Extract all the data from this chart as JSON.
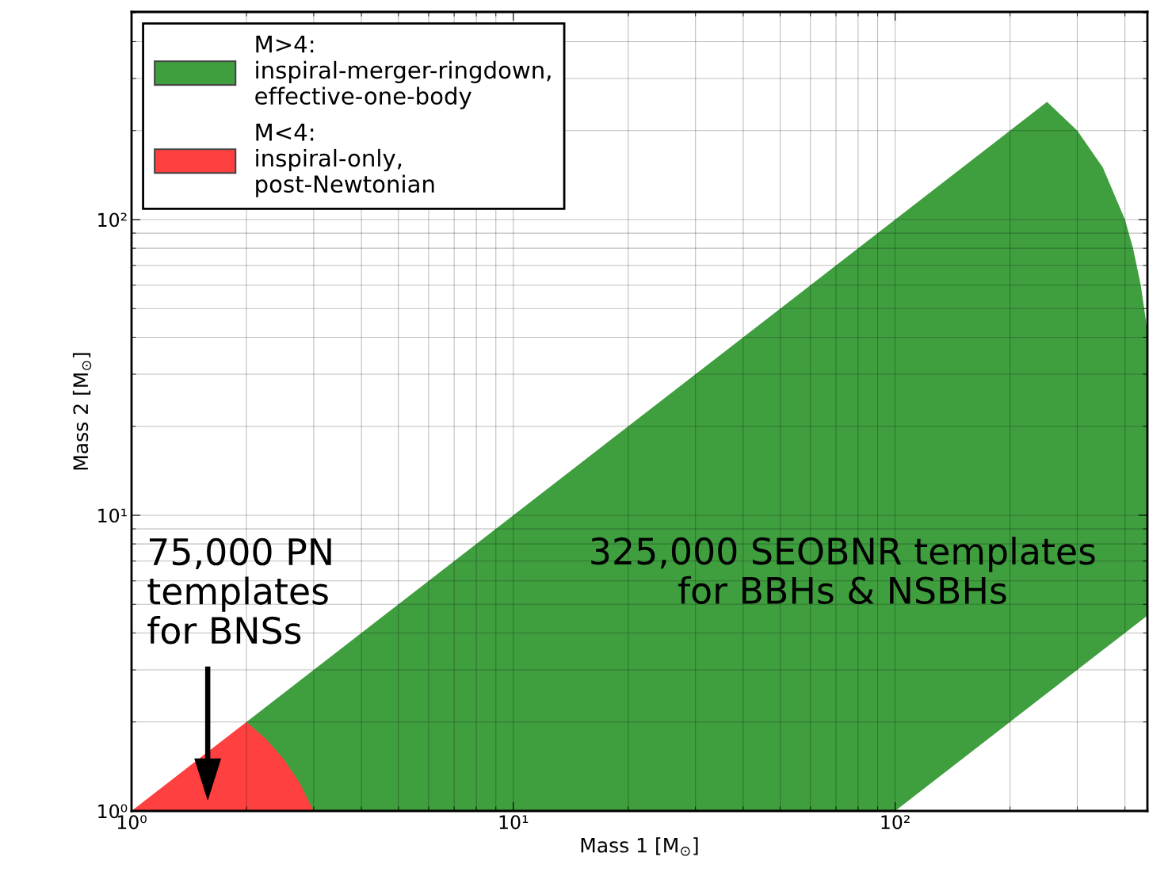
{
  "chart_data": {
    "type": "area",
    "xlabel": "Mass 1 [M$_{⊙}$]",
    "ylabel": "Mass 2 [M$_{⊙}$]",
    "log": "xy",
    "xlim": [
      1,
      458
    ],
    "ylim": [
      1,
      504
    ],
    "xticks": [
      {
        "value": 1,
        "label": "10⁰"
      },
      {
        "value": 10,
        "label": "10¹"
      },
      {
        "value": 100,
        "label": "10²"
      }
    ],
    "yticks": [
      {
        "value": 1,
        "label": "10⁰"
      },
      {
        "value": 10,
        "label": "10¹"
      },
      {
        "value": 100,
        "label": "10²"
      }
    ],
    "grid": true,
    "legend": "top left",
    "series": [
      {
        "name": "M>4:\ninspiral-merger-ringdown,\neffective-one-body",
        "color": "#3f9f3f",
        "x": [
          2,
          10,
          100,
          250,
          300,
          350,
          400,
          420,
          440,
          458
        ],
        "values": [
          2,
          10,
          100,
          250,
          200,
          150,
          100,
          80,
          60,
          42
        ]
      },
      {
        "color": "#ffffff",
        "x": [
          100,
          250,
          300,
          350,
          400,
          420,
          440,
          458
        ],
        "values": [
          1,
          2.5,
          3,
          3.5,
          4,
          4.2,
          4.4,
          4.58
        ]
      },
      {
        "name": "M<4:\ninspiral-only,\npost-Newtonian",
        "color": "#ff4040",
        "x": [
          1,
          2,
          2.25,
          2.5,
          2.75,
          3
        ],
        "values": [
          1,
          2,
          1.75,
          1.5,
          1.25,
          1
        ]
      }
    ],
    "annotations": [
      "75,000 PN\ntemplates\nfor BNSs",
      "325,000 SEOBNR templates\nfor BBHs & NSBHs"
    ]
  }
}
